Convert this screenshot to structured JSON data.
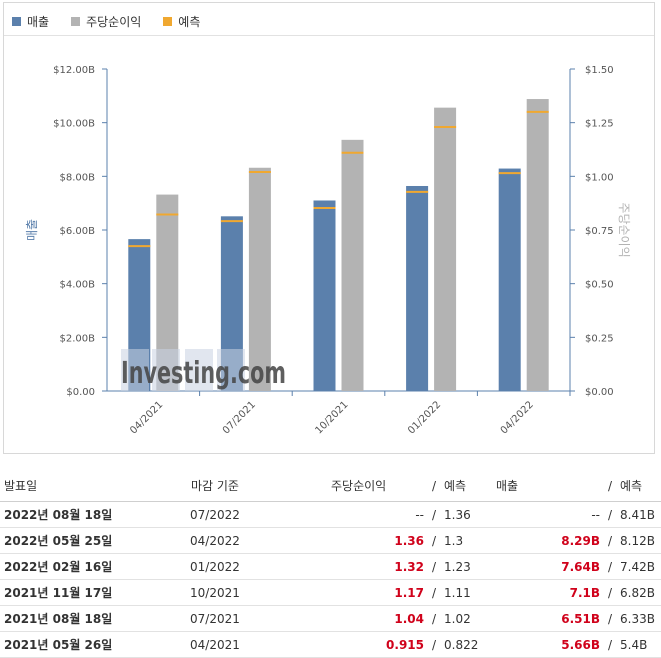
{
  "legend": [
    {
      "label": "매출",
      "color": "#5b80ac"
    },
    {
      "label": "주당순이익",
      "color": "#b3b3b3"
    },
    {
      "label": "예측",
      "color": "#f0a830"
    }
  ],
  "colors": {
    "revenue": "#5b80ac",
    "eps": "#b3b3b3",
    "forecast": "#f0a830"
  },
  "watermark": "Investing.com",
  "chart_data": {
    "type": "bar",
    "categories": [
      "04/2021",
      "07/2021",
      "10/2021",
      "01/2022",
      "04/2022"
    ],
    "ylabel_left": "매출",
    "ylabel_right": "주당순이익",
    "yticks_left": [
      "$0.00",
      "$2.00B",
      "$4.00B",
      "$6.00B",
      "$8.00B",
      "$10.00B",
      "$12.00B"
    ],
    "yticks_right": [
      "$0.00",
      "$0.25",
      "$0.50",
      "$0.75",
      "$1.00",
      "$1.25",
      "$1.50"
    ],
    "ylim_left": [
      0,
      12
    ],
    "ylim_right": [
      0,
      1.5
    ],
    "series": [
      {
        "name": "매출",
        "axis": "left",
        "values": [
          5.66,
          6.51,
          7.1,
          7.64,
          8.29
        ],
        "forecast": [
          5.4,
          6.33,
          6.82,
          7.42,
          8.12
        ]
      },
      {
        "name": "주당순이익",
        "axis": "right",
        "values": [
          0.915,
          1.04,
          1.17,
          1.32,
          1.36
        ],
        "forecast": [
          0.822,
          1.02,
          1.11,
          1.23,
          1.3
        ]
      }
    ]
  },
  "table": {
    "headers": {
      "date": "발표일",
      "period": "마감 기준",
      "eps": "주당순이익",
      "eps_forecast": "예측",
      "revenue": "매출",
      "revenue_forecast": "예측",
      "slash": "/"
    },
    "rows": [
      {
        "date": "2022년 08월 18일",
        "period": "07/2022",
        "eps": "--",
        "eps_forecast": "1.36",
        "revenue": "--",
        "revenue_forecast": "8.41B",
        "highlight": false
      },
      {
        "date": "2022년 05월 25일",
        "period": "04/2022",
        "eps": "1.36",
        "eps_forecast": "1.3",
        "revenue": "8.29B",
        "revenue_forecast": "8.12B",
        "highlight": true
      },
      {
        "date": "2022년 02월 16일",
        "period": "01/2022",
        "eps": "1.32",
        "eps_forecast": "1.23",
        "revenue": "7.64B",
        "revenue_forecast": "7.42B",
        "highlight": true
      },
      {
        "date": "2021년 11월 17일",
        "period": "10/2021",
        "eps": "1.17",
        "eps_forecast": "1.11",
        "revenue": "7.1B",
        "revenue_forecast": "6.82B",
        "highlight": true
      },
      {
        "date": "2021년 08월 18일",
        "period": "07/2021",
        "eps": "1.04",
        "eps_forecast": "1.02",
        "revenue": "6.51B",
        "revenue_forecast": "6.33B",
        "highlight": true
      },
      {
        "date": "2021년 05월 26일",
        "period": "04/2021",
        "eps": "0.915",
        "eps_forecast": "0.822",
        "revenue": "5.66B",
        "revenue_forecast": "5.4B",
        "highlight": true
      }
    ]
  }
}
